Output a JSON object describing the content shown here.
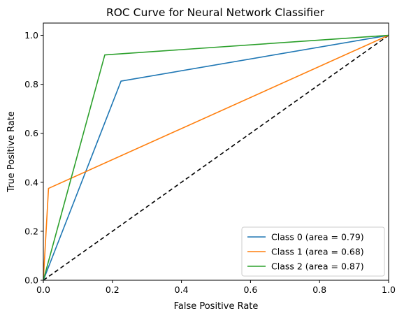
{
  "chart_data": {
    "type": "line",
    "title": "ROC Curve for Neural Network Classifier",
    "xlabel": "False Positive Rate",
    "ylabel": "True Positive Rate",
    "xlim": [
      0.0,
      1.0
    ],
    "ylim": [
      0.0,
      1.05
    ],
    "xticks": [
      0.0,
      0.2,
      0.4,
      0.6,
      0.8,
      1.0
    ],
    "yticks": [
      0.0,
      0.2,
      0.4,
      0.6,
      0.8,
      1.0
    ],
    "xtick_labels": [
      "0.0",
      "0.2",
      "0.4",
      "0.6",
      "0.8",
      "1.0"
    ],
    "ytick_labels": [
      "0.0",
      "0.2",
      "0.4",
      "0.6",
      "0.8",
      "1.0"
    ],
    "grid": false,
    "legend_position": "bottom-right",
    "series": [
      {
        "name": "Class 0 (area = 0.79)",
        "color": "#1f77b4",
        "style": "solid",
        "x": [
          0.0,
          0.225,
          1.0
        ],
        "y": [
          0.0,
          0.813,
          1.0
        ]
      },
      {
        "name": "Class 1 (area = 0.68)",
        "color": "#ff7f0e",
        "style": "solid",
        "x": [
          0.0,
          0.015,
          1.0
        ],
        "y": [
          0.0,
          0.375,
          1.0
        ]
      },
      {
        "name": "Class 2 (area = 0.87)",
        "color": "#2ca02c",
        "style": "solid",
        "x": [
          0.0,
          0.178,
          1.0
        ],
        "y": [
          0.0,
          0.92,
          1.0
        ]
      }
    ],
    "reference_line": {
      "color": "#000000",
      "style": "dashed",
      "x": [
        0.0,
        1.0
      ],
      "y": [
        0.0,
        1.0
      ]
    }
  }
}
